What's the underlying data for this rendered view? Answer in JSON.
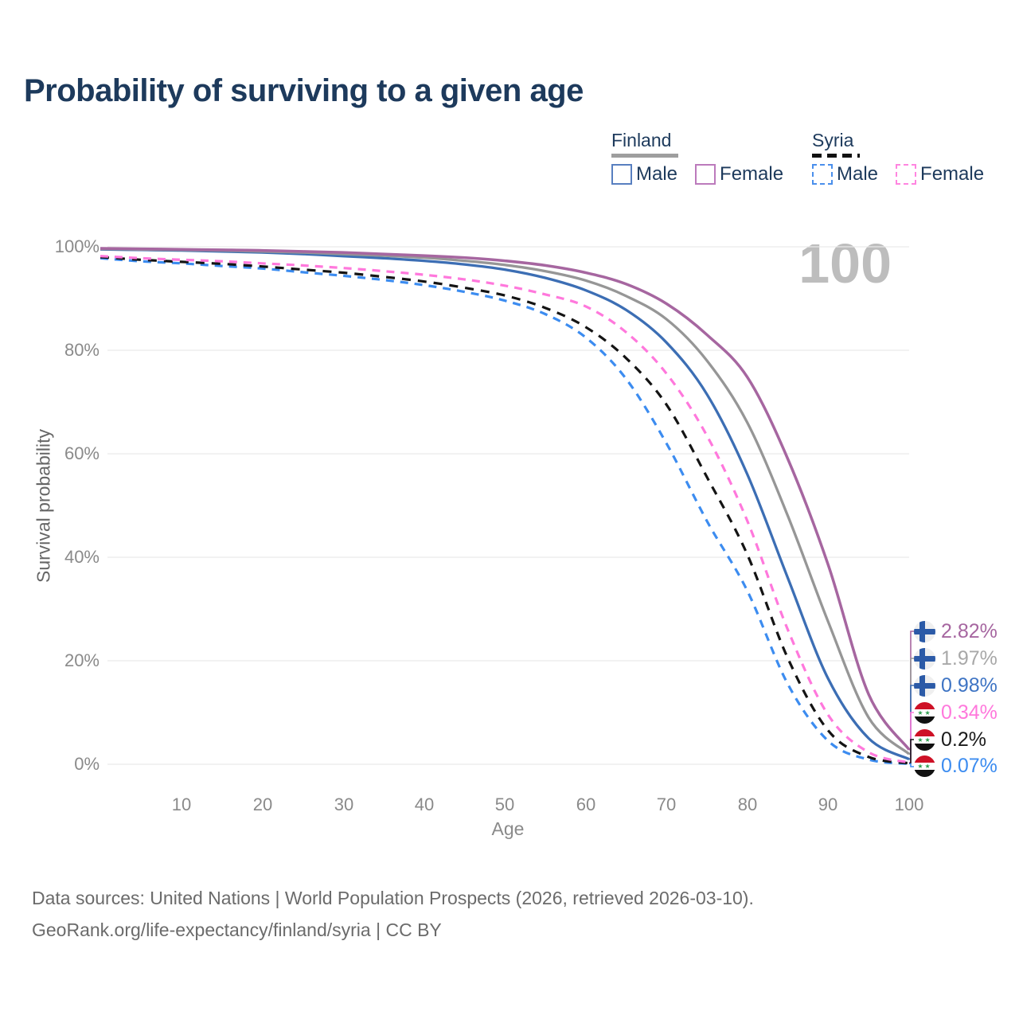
{
  "title": "Probability of surviving to a given age",
  "watermark_age": "100",
  "legend": {
    "finland": {
      "label": "Finland",
      "male_label": "Male",
      "female_label": "Female",
      "male_swatch_color": "#587fc0",
      "female_swatch_color": "#bc7abc",
      "line_color": "#9e9e9e"
    },
    "syria": {
      "label": "Syria",
      "male_label": "Male",
      "female_label": "Female",
      "male_swatch_color": "#4a8fec",
      "female_swatch_color": "#ff85e0",
      "line_color": "#111111"
    }
  },
  "axes": {
    "xlabel": "Age",
    "ylabel": "Survival probability"
  },
  "footer": {
    "line1": "Data sources: United Nations | World Population Prospects (2026, retrieved 2026-03-10).",
    "line2": "GeoRank.org/life-expectancy/finland/syria | CC BY"
  },
  "chart_data": {
    "type": "line",
    "title": "Probability of surviving to a given age",
    "xlabel": "Age",
    "ylabel": "Survival probability",
    "xlim": [
      0,
      100
    ],
    "ylim": [
      0,
      100
    ],
    "grid": "horizontal",
    "legend_position": "top-right",
    "x_ticks": [
      10,
      20,
      30,
      40,
      50,
      60,
      70,
      80,
      90,
      100
    ],
    "y_ticks": [
      {
        "label": "100%",
        "value": 100
      },
      {
        "label": "80%",
        "value": 80
      },
      {
        "label": "60%",
        "value": 60
      },
      {
        "label": "40%",
        "value": 40
      },
      {
        "label": "20%",
        "value": 20
      },
      {
        "label": "0%",
        "value": 0
      }
    ],
    "ages": [
      0,
      5,
      10,
      15,
      20,
      25,
      30,
      35,
      40,
      45,
      50,
      55,
      60,
      65,
      70,
      75,
      80,
      85,
      90,
      95,
      100
    ],
    "series": [
      {
        "id": "syria-male",
        "name": "Syria Male",
        "country": "Syria",
        "sex": "Male",
        "color": "#3c8cf0",
        "dash": "10 8",
        "width": 3.2,
        "values": [
          97.8,
          97.2,
          96.8,
          96.3,
          95.8,
          95.1,
          94.4,
          93.6,
          92.6,
          91.3,
          89.6,
          87.0,
          82.5,
          74.5,
          62.0,
          47.0,
          33.5,
          15.5,
          4.5,
          0.9,
          0.07
        ]
      },
      {
        "id": "syria-total",
        "name": "Syria",
        "country": "Syria",
        "sex": "Both",
        "color": "#141414",
        "dash": "11 9",
        "width": 3.2,
        "values": [
          98.0,
          97.5,
          97.1,
          96.7,
          96.2,
          95.6,
          95.0,
          94.2,
          93.3,
          92.1,
          90.6,
          88.2,
          84.5,
          78.5,
          69.5,
          55.5,
          40.5,
          20.5,
          6.5,
          1.4,
          0.2
        ]
      },
      {
        "id": "syria-female",
        "name": "Syria Female",
        "country": "Syria",
        "sex": "Female",
        "color": "#ff78dc",
        "dash": "10 8",
        "width": 3.2,
        "values": [
          98.2,
          97.8,
          97.5,
          97.2,
          96.8,
          96.4,
          95.9,
          95.3,
          94.6,
          93.7,
          92.5,
          90.8,
          88.5,
          83.5,
          75.5,
          63.5,
          47.0,
          26.0,
          9.5,
          2.3,
          0.34
        ]
      },
      {
        "id": "finland-male",
        "name": "Finland Male",
        "country": "Finland",
        "sex": "Male",
        "color": "#3c6eb4",
        "dash": null,
        "width": 3.3,
        "values": [
          99.5,
          99.4,
          99.3,
          99.1,
          98.9,
          98.6,
          98.2,
          97.8,
          97.3,
          96.6,
          95.6,
          94.0,
          91.6,
          87.8,
          81.5,
          71.5,
          56.0,
          36.0,
          16.5,
          5.0,
          0.98
        ]
      },
      {
        "id": "finland-total",
        "name": "Finland",
        "country": "Finland",
        "sex": "Both",
        "color": "#969696",
        "dash": null,
        "width": 3.3,
        "values": [
          99.6,
          99.5,
          99.4,
          99.3,
          99.1,
          98.9,
          98.6,
          98.3,
          97.9,
          97.3,
          96.5,
          95.3,
          93.5,
          90.5,
          86.0,
          78.0,
          66.0,
          48.0,
          27.5,
          9.0,
          1.97
        ]
      },
      {
        "id": "finland-female",
        "name": "Finland Female",
        "country": "Finland",
        "sex": "Female",
        "color": "#a666a0",
        "dash": null,
        "width": 3.5,
        "values": [
          99.7,
          99.6,
          99.5,
          99.4,
          99.3,
          99.1,
          98.9,
          98.6,
          98.3,
          97.9,
          97.3,
          96.4,
          95.0,
          92.8,
          89.0,
          83.0,
          74.8,
          59.0,
          38.5,
          13.5,
          2.82
        ]
      }
    ],
    "end_labels": [
      {
        "series": "finland-female",
        "text": "2.82%",
        "color": "#a666a0",
        "flag": "finland"
      },
      {
        "series": "finland-total",
        "text": "1.97%",
        "color": "#a8a8a8",
        "flag": "finland"
      },
      {
        "series": "finland-male",
        "text": "0.98%",
        "color": "#3e74c4",
        "flag": "finland"
      },
      {
        "series": "syria-female",
        "text": "0.34%",
        "color": "#ff78dc",
        "flag": "syria"
      },
      {
        "series": "syria-total",
        "text": "0.2%",
        "color": "#1a1a1a",
        "flag": "syria"
      },
      {
        "series": "syria-male",
        "text": "0.07%",
        "color": "#3c8cf0",
        "flag": "syria"
      }
    ]
  }
}
